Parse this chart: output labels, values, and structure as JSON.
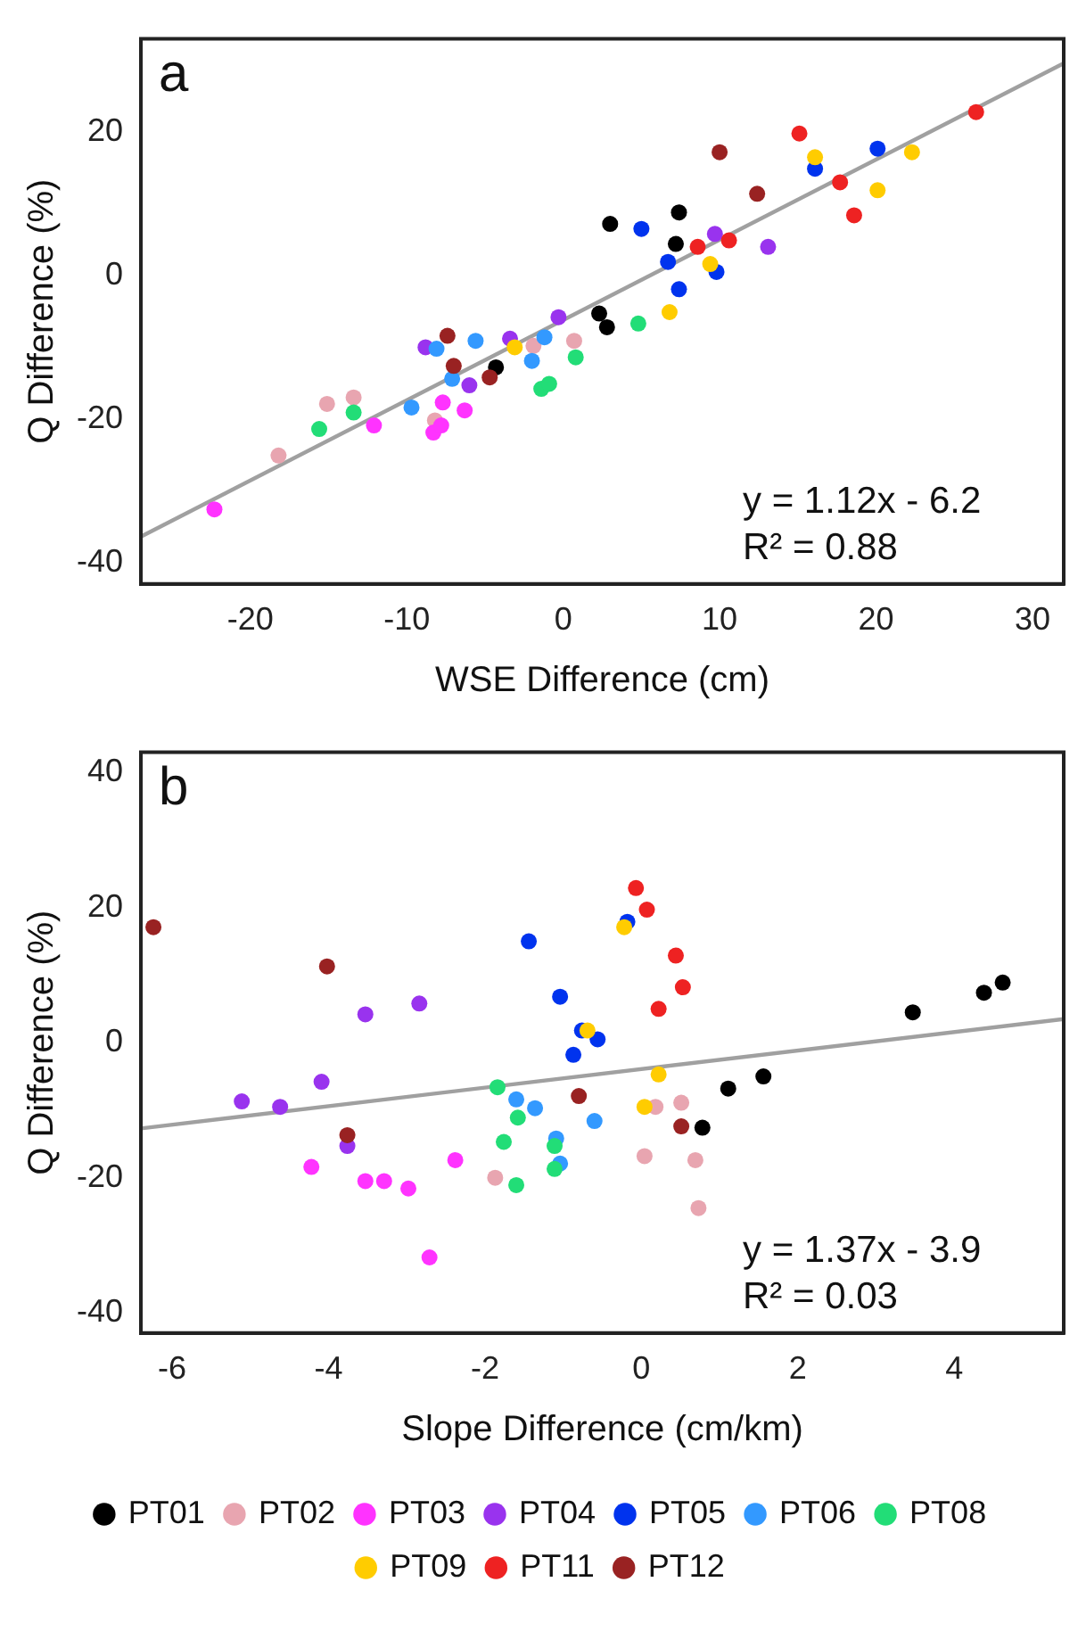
{
  "chart_data": [
    {
      "type": "scatter",
      "xlabel": "WSE Difference (cm)",
      "ylabel": "Q Difference (%)",
      "xlim": [
        -27,
        32
      ],
      "ylim": [
        -43,
        33
      ],
      "xticks": [
        -20,
        -10,
        0,
        10,
        20,
        30
      ],
      "yticks": [
        -40,
        -20,
        0,
        20
      ],
      "grid": false,
      "legend": false,
      "marker": "circle",
      "annotations": [
        "a",
        "y = 1.12x - 6.2",
        "R² = 0.88"
      ],
      "series": [
        {
          "color": "#000000",
          "x": [
            -4.3,
            3.0,
            7.4,
            7.2,
            2.3,
            2.8
          ],
          "values": [
            -12.8,
            7.2,
            8.8,
            4.4,
            -5.3,
            -7.2
          ]
        },
        {
          "color": "#e8a5b0",
          "x": [
            -18.2,
            -15.1,
            -13.4,
            -8.2,
            -1.9,
            0.7
          ],
          "values": [
            -25.1,
            -17.9,
            -17.0,
            -20.2,
            -9.8,
            -9.1
          ]
        },
        {
          "color": "#ff33ff",
          "x": [
            -22.3,
            -12.1,
            -8.3,
            -7.8,
            -7.7,
            -6.3
          ],
          "values": [
            -32.6,
            -20.9,
            -21.9,
            -20.9,
            -17.7,
            -18.8
          ]
        },
        {
          "color": "#9933ee",
          "x": [
            -8.8,
            -6.0,
            -3.4,
            -0.3,
            9.7,
            13.1
          ],
          "values": [
            -10.0,
            -15.3,
            -8.8,
            -5.8,
            5.8,
            4.0
          ]
        },
        {
          "color": "#0033ee",
          "x": [
            5.0,
            6.7,
            7.4,
            9.8,
            16.1,
            20.1
          ],
          "values": [
            6.5,
            1.9,
            -1.9,
            0.5,
            14.9,
            17.7
          ]
        },
        {
          "color": "#3399ff",
          "x": [
            -8.1,
            -7.1,
            -9.7,
            -5.6,
            -2.0,
            -1.2
          ],
          "values": [
            -10.2,
            -14.4,
            -18.4,
            -9.1,
            -11.9,
            -8.6
          ]
        },
        {
          "color": "#22dd77",
          "x": [
            -15.6,
            -13.4,
            -1.4,
            -0.9,
            0.8,
            4.8
          ],
          "values": [
            -21.4,
            -19.1,
            -15.8,
            -15.1,
            -11.4,
            -6.7
          ]
        },
        {
          "color": "#ffcc00",
          "x": [
            -3.1,
            6.8,
            9.4,
            16.1,
            20.1,
            22.3
          ],
          "values": [
            -10.0,
            -5.1,
            1.6,
            16.5,
            11.9,
            17.2
          ]
        },
        {
          "color": "#ee2222",
          "x": [
            8.6,
            10.6,
            15.1,
            17.7,
            18.6,
            26.4
          ],
          "values": [
            4.0,
            4.9,
            19.8,
            13.0,
            8.4,
            22.8
          ]
        },
        {
          "color": "#992222",
          "x": [
            -7.4,
            -7.0,
            -4.7,
            10.0,
            12.4
          ],
          "values": [
            -8.4,
            -12.6,
            -14.2,
            17.2,
            11.4
          ]
        },
        {
          "type": "line",
          "color": "#a0a0a0",
          "line_style": "solid",
          "marker": "none",
          "x": [
            -27,
            32
          ],
          "values": [
            -36.4,
            29.6
          ]
        }
      ]
    },
    {
      "type": "scatter",
      "xlabel": "Slope Difference (cm/km)",
      "ylabel": "Q Difference (%)",
      "xlim": [
        -6.4,
        5.4
      ],
      "ylim": [
        -43,
        43
      ],
      "xticks": [
        -6,
        -4,
        -2,
        0,
        2,
        4
      ],
      "yticks": [
        -40,
        -20,
        0,
        20,
        40
      ],
      "grid": false,
      "legend": "bottom",
      "marker": "circle",
      "annotations": [
        "b",
        "y = 1.37x - 3.9",
        "R² = 0.03"
      ],
      "series": [
        {
          "name": "PT01",
          "color": "#000000",
          "x": [
            3.47,
            4.38,
            4.62,
            1.56,
            1.11,
            0.78
          ],
          "values": [
            4.5,
            7.4,
            8.9,
            -5.0,
            -6.8,
            -12.6
          ]
        },
        {
          "name": "PT02",
          "color": "#e8a5b0",
          "x": [
            -1.87,
            0.18,
            0.51,
            0.04,
            0.69,
            0.73
          ],
          "values": [
            -20.0,
            -9.5,
            -8.9,
            -16.8,
            -17.4,
            -24.5
          ]
        },
        {
          "name": "PT03",
          "color": "#ff33ff",
          "x": [
            -4.22,
            -3.53,
            -3.29,
            -2.98,
            -2.71,
            -2.38
          ],
          "values": [
            -18.4,
            -20.5,
            -20.5,
            -21.6,
            -31.8,
            -17.4
          ]
        },
        {
          "name": "PT04",
          "color": "#9933ee",
          "x": [
            -5.11,
            -4.62,
            -4.09,
            -3.76,
            -3.53,
            -2.84
          ],
          "values": [
            -8.7,
            -9.5,
            -5.8,
            -15.3,
            4.2,
            5.8
          ]
        },
        {
          "name": "PT05",
          "color": "#0033ee",
          "x": [
            -1.44,
            -1.04,
            -0.76,
            -0.87,
            -0.56,
            -0.18
          ],
          "values": [
            15.0,
            6.8,
            1.8,
            -1.8,
            0.5,
            17.9
          ]
        },
        {
          "name": "PT06",
          "color": "#3399ff",
          "x": [
            -1.6,
            -1.36,
            -1.09,
            -1.04,
            -0.6
          ],
          "values": [
            -8.4,
            -9.7,
            -14.2,
            -17.9,
            -11.6
          ]
        },
        {
          "name": "PT08",
          "color": "#22dd77",
          "x": [
            -1.84,
            -1.58,
            -1.76,
            -1.11,
            -1.11,
            -1.6
          ],
          "values": [
            -6.6,
            -11.1,
            -14.7,
            -15.3,
            -18.7,
            -21.1
          ]
        },
        {
          "name": "PT09",
          "color": "#ffcc00",
          "x": [
            -0.69,
            -0.22,
            0.22,
            0.04
          ],
          "values": [
            1.8,
            17.1,
            -4.7,
            -9.5
          ]
        },
        {
          "name": "PT11",
          "color": "#ee2222",
          "x": [
            -0.07,
            0.07,
            0.44,
            0.53,
            0.22
          ],
          "values": [
            22.9,
            19.7,
            12.9,
            8.2,
            5.0
          ]
        },
        {
          "name": "PT12",
          "color": "#992222",
          "x": [
            -6.24,
            -4.02,
            -3.76,
            -0.8,
            0.51
          ],
          "values": [
            17.1,
            11.3,
            -13.7,
            -7.9,
            -12.4
          ]
        },
        {
          "type": "line",
          "color": "#a0a0a0",
          "line_style": "solid",
          "marker": "none",
          "x": [
            -6.4,
            5.4
          ],
          "values": [
            -12.7,
            3.5
          ]
        }
      ]
    }
  ]
}
